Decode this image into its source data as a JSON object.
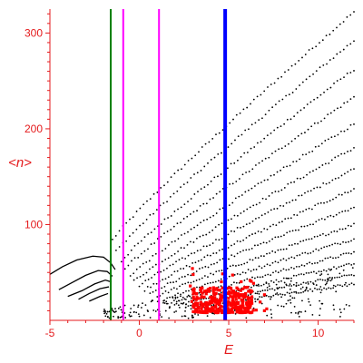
{
  "chart_data": {
    "type": "scatter",
    "xlabel": "E",
    "ylabel": "<n>",
    "xlim": [
      -5,
      12
    ],
    "ylim": [
      0,
      325
    ],
    "x_ticks": [
      "-5",
      "0",
      "5",
      "10"
    ],
    "x_tick_values": [
      -5,
      0,
      5,
      10
    ],
    "y_ticks": [
      "100",
      "200",
      "300"
    ],
    "y_tick_values": [
      100,
      200,
      300
    ],
    "colors": {
      "axis": "#e41a1c",
      "curves": "#000000",
      "red_markers": "#ff0000",
      "green_line": "#008000",
      "magenta_line": "#ff00ff",
      "blue_line": "#0000ff"
    },
    "vertical_lines": [
      {
        "x": -1.6,
        "color": "#008000",
        "width": 2
      },
      {
        "x": -0.9,
        "color": "#ff00ff",
        "width": 2
      },
      {
        "x": 1.1,
        "color": "#ff00ff",
        "width": 2
      },
      {
        "x": 4.8,
        "color": "#0000ff",
        "width": 4
      }
    ],
    "dotted_curves": [
      {
        "start": [
          -1.5,
          84
        ],
        "end": [
          12,
          322
        ]
      },
      {
        "start": [
          -1.3,
          72
        ],
        "end": [
          12,
          292
        ]
      },
      {
        "start": [
          -1.0,
          62
        ],
        "end": [
          12,
          262
        ]
      },
      {
        "start": [
          -0.8,
          54
        ],
        "end": [
          12,
          233
        ]
      },
      {
        "start": [
          -0.5,
          47
        ],
        "end": [
          12,
          205
        ]
      },
      {
        "start": [
          -0.3,
          41
        ],
        "end": [
          12,
          180
        ]
      },
      {
        "start": [
          0.0,
          36
        ],
        "end": [
          12,
          158
        ]
      },
      {
        "start": [
          0.3,
          32
        ],
        "end": [
          12,
          137
        ]
      },
      {
        "start": [
          0.6,
          28
        ],
        "end": [
          12,
          118
        ]
      },
      {
        "start": [
          1.0,
          25
        ],
        "end": [
          12,
          100
        ]
      },
      {
        "start": [
          1.4,
          22
        ],
        "end": [
          12,
          85
        ]
      },
      {
        "start": [
          1.8,
          19
        ],
        "end": [
          12,
          71
        ]
      },
      {
        "start": [
          2.2,
          16
        ],
        "end": [
          12,
          59
        ]
      },
      {
        "start": [
          2.6,
          14
        ],
        "end": [
          12,
          48
        ]
      },
      {
        "start": [
          3.0,
          12
        ],
        "end": [
          12,
          38
        ]
      }
    ],
    "solid_curves": [
      {
        "points": [
          [
            -5,
            48
          ],
          [
            -4.3,
            56
          ],
          [
            -3.5,
            63
          ],
          [
            -2.6,
            67
          ],
          [
            -2.0,
            66
          ],
          [
            -1.6,
            60
          ],
          [
            -1.35,
            53
          ]
        ]
      },
      {
        "points": [
          [
            -4.5,
            32
          ],
          [
            -3.8,
            39
          ],
          [
            -3.0,
            47
          ],
          [
            -2.3,
            52
          ],
          [
            -1.8,
            51
          ],
          [
            -1.5,
            46
          ]
        ]
      },
      {
        "points": [
          [
            -4.0,
            25
          ],
          [
            -3.2,
            31
          ],
          [
            -2.5,
            38
          ],
          [
            -1.9,
            42
          ],
          [
            -1.55,
            40
          ]
        ]
      },
      {
        "points": [
          [
            -3.4,
            22
          ],
          [
            -2.8,
            28
          ],
          [
            -2.2,
            33
          ],
          [
            -1.7,
            35
          ]
        ]
      },
      {
        "points": [
          [
            -2.8,
            20
          ],
          [
            -2.2,
            25
          ],
          [
            -1.75,
            28
          ]
        ]
      }
    ],
    "red_clusters": [
      {
        "x_range": [
          3.0,
          4.6
        ],
        "y_range": [
          8,
          35
        ],
        "count": 140
      },
      {
        "x_range": [
          4.6,
          6.3
        ],
        "y_range": [
          8,
          35
        ],
        "count": 170
      },
      {
        "x_range": [
          2.8,
          7.3
        ],
        "y_range": [
          10,
          55
        ],
        "count": 30
      }
    ]
  }
}
